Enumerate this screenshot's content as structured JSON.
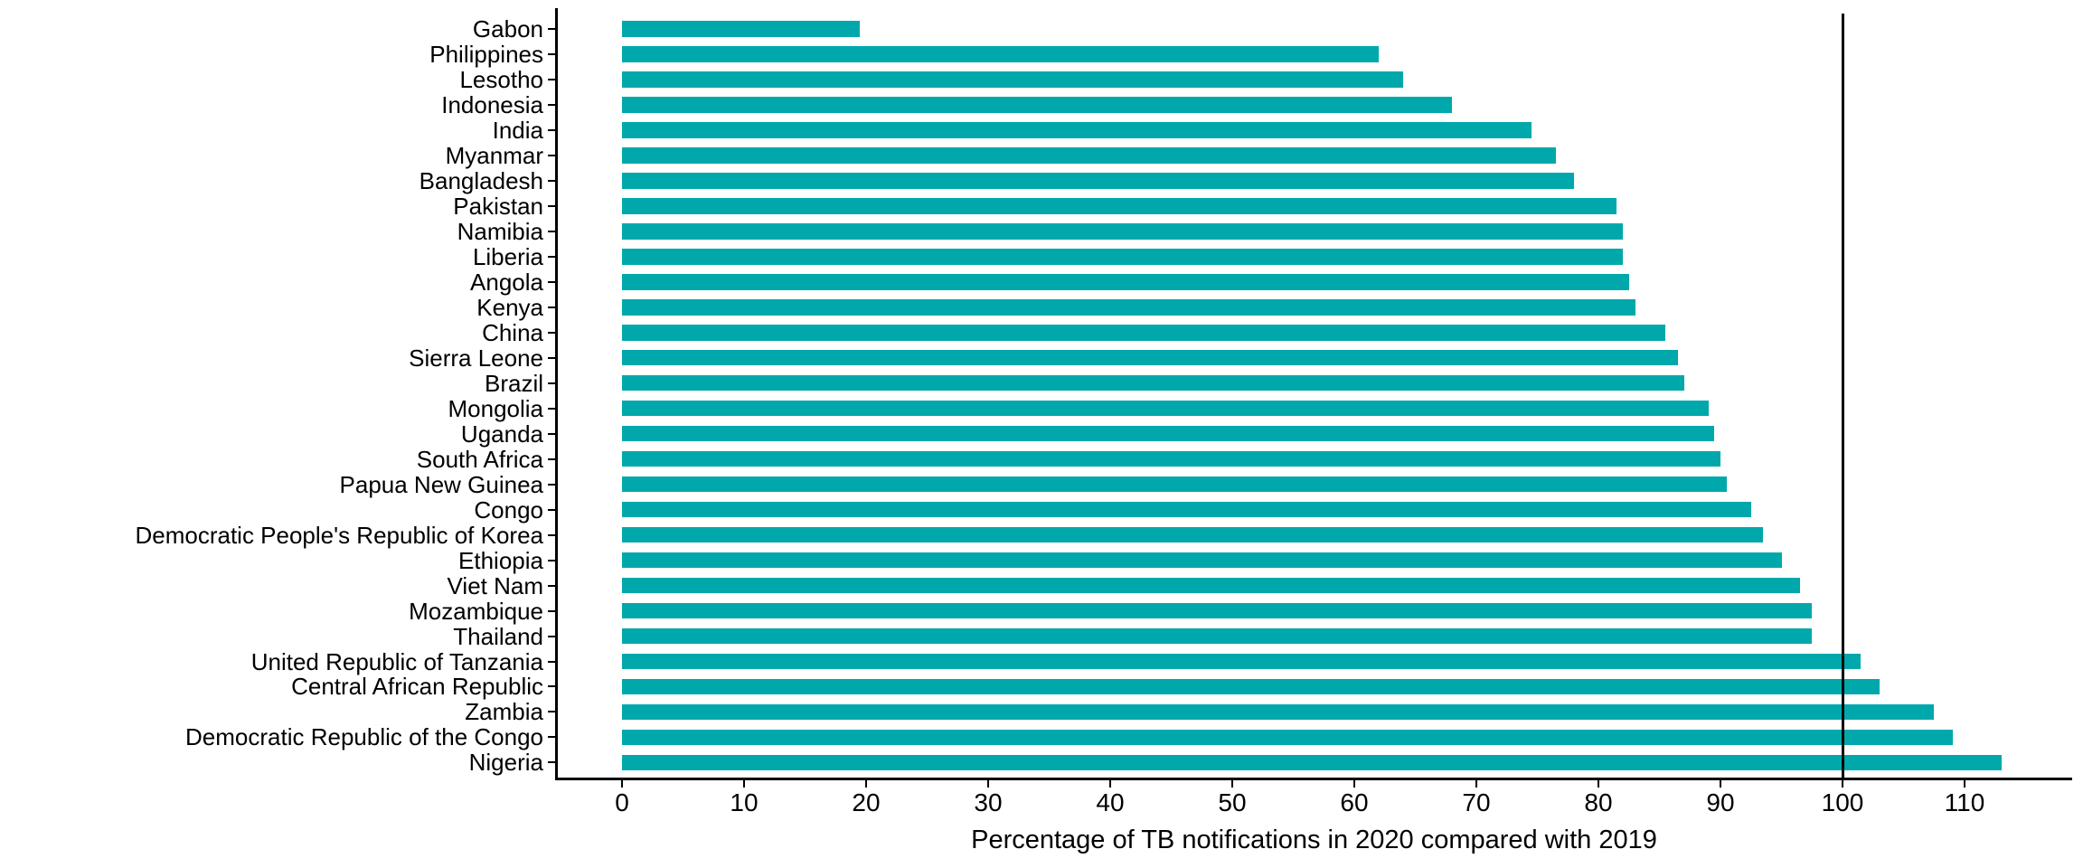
{
  "chart_data": {
    "type": "bar",
    "orientation": "horizontal",
    "title": "",
    "xlabel": "Percentage of TB notifications in 2020 compared with 2019",
    "ylabel": "",
    "categories": [
      "Gabon",
      "Philippines",
      "Lesotho",
      "Indonesia",
      "India",
      "Myanmar",
      "Bangladesh",
      "Pakistan",
      "Namibia",
      "Liberia",
      "Angola",
      "Kenya",
      "China",
      "Sierra Leone",
      "Brazil",
      "Mongolia",
      "Uganda",
      "South Africa",
      "Papua New Guinea",
      "Congo",
      "Democratic People's Republic of Korea",
      "Ethiopia",
      "Viet Nam",
      "Mozambique",
      "Thailand",
      "United Republic of Tanzania",
      "Central African Republic",
      "Zambia",
      "Democratic Republic of the Congo",
      "Nigeria"
    ],
    "values": [
      19.5,
      62,
      64,
      68,
      74.5,
      76.5,
      78,
      81.5,
      82,
      82,
      82.5,
      83,
      85.5,
      86.5,
      87,
      89,
      89.5,
      90,
      90.5,
      92.5,
      93.5,
      95,
      96.5,
      97.5,
      97.5,
      101.5,
      103,
      107.5,
      109,
      113
    ],
    "xticks": [
      0,
      10,
      20,
      30,
      40,
      50,
      60,
      70,
      80,
      90,
      100,
      110
    ],
    "xlim": [
      -5.5,
      119
    ],
    "reference_line_x": 100,
    "bar_color": "#00A8AC",
    "axis_color": "#000000",
    "text_color": "#000000",
    "grid": false,
    "legend": false
  }
}
